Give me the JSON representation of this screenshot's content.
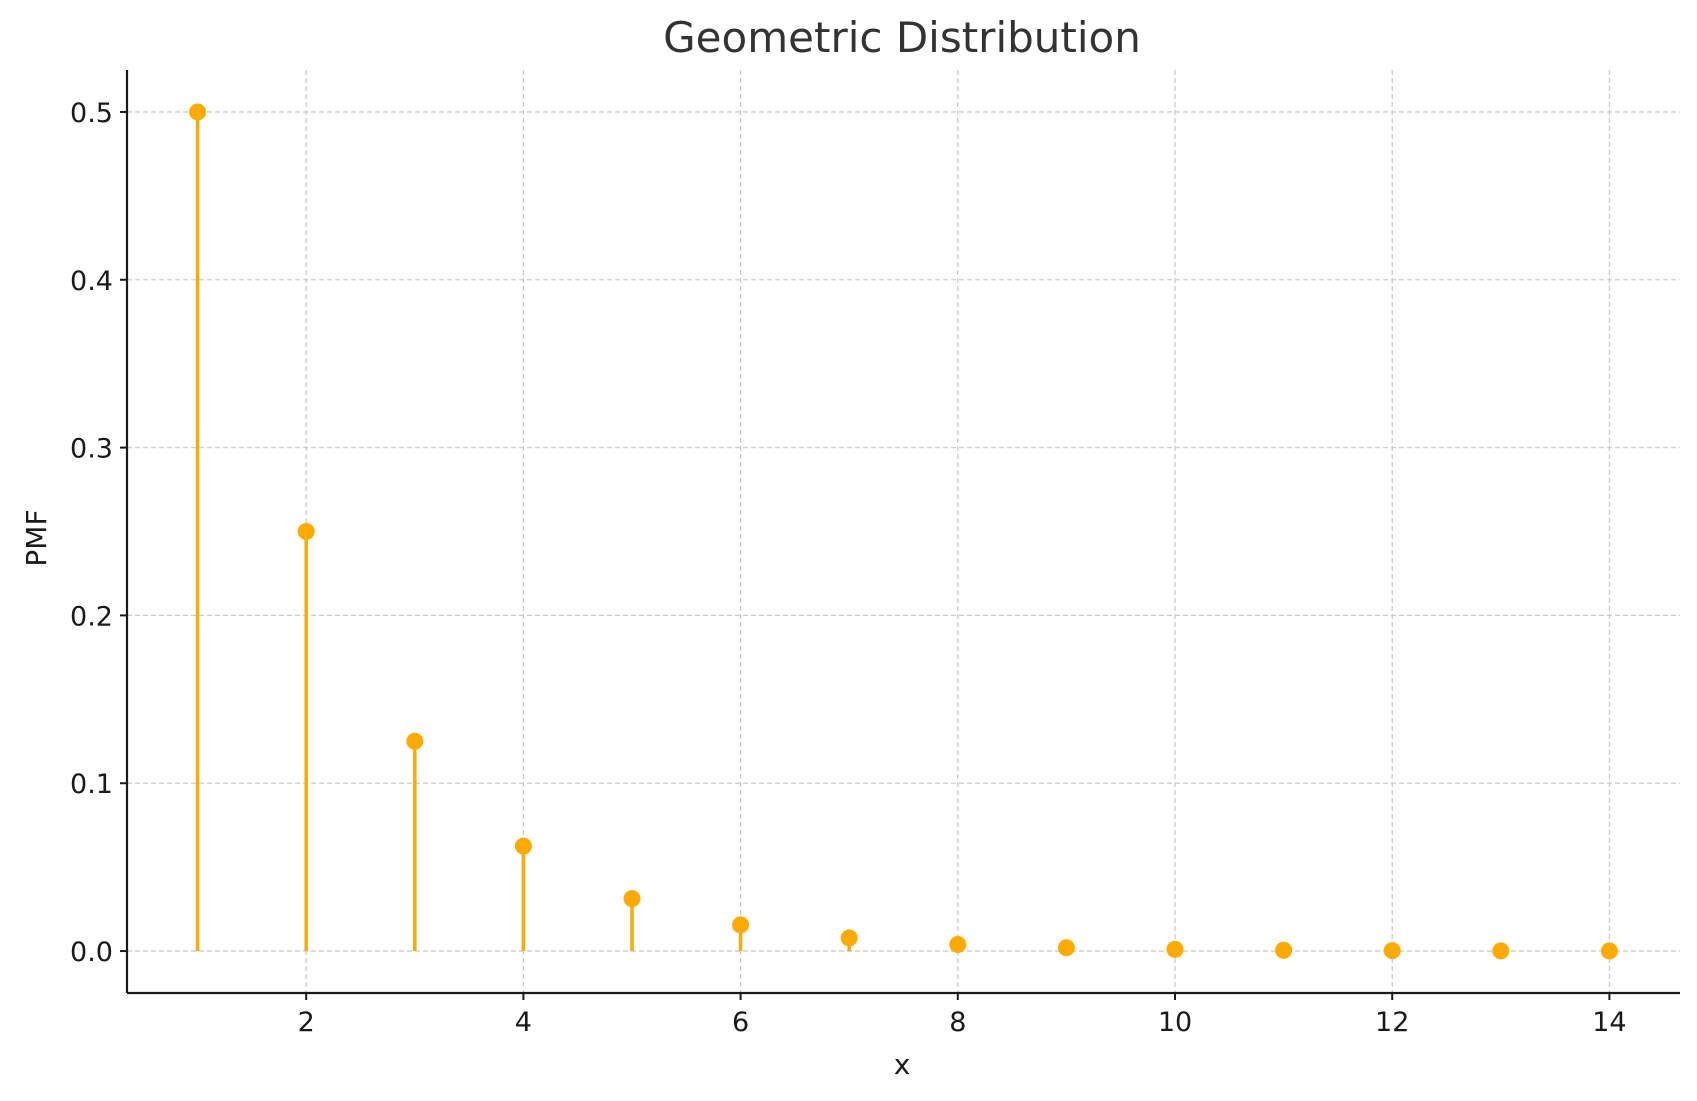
{
  "chart_data": {
    "type": "stem",
    "title": "Geometric Distribution",
    "xlabel": "x",
    "ylabel": "PMF",
    "x": [
      1,
      2,
      3,
      4,
      5,
      6,
      7,
      8,
      9,
      10,
      11,
      12,
      13,
      14
    ],
    "y": [
      0.5,
      0.25,
      0.125,
      0.0625,
      0.03125,
      0.015625,
      0.0078125,
      0.00390625,
      0.001953125,
      0.0009765625,
      0.00048828125,
      0.000244140625,
      0.0001220703125,
      6.103515625e-05
    ],
    "xlim": [
      0.35,
      14.65
    ],
    "ylim": [
      -0.025,
      0.525
    ],
    "xticks": [
      2,
      4,
      6,
      8,
      10,
      12,
      14
    ],
    "xtick_labels": [
      "2",
      "4",
      "6",
      "8",
      "10",
      "12",
      "14"
    ],
    "yticks": [
      0.0,
      0.1,
      0.2,
      0.3,
      0.4,
      0.5
    ],
    "ytick_labels": [
      "0.0",
      "0.1",
      "0.2",
      "0.3",
      "0.4",
      "0.5"
    ],
    "grid": true,
    "grid_style": "dashed",
    "color": "#FFAA00",
    "grid_color": "#cccccc",
    "axis_color": "#1a1a1a",
    "title_color": "#333333"
  }
}
